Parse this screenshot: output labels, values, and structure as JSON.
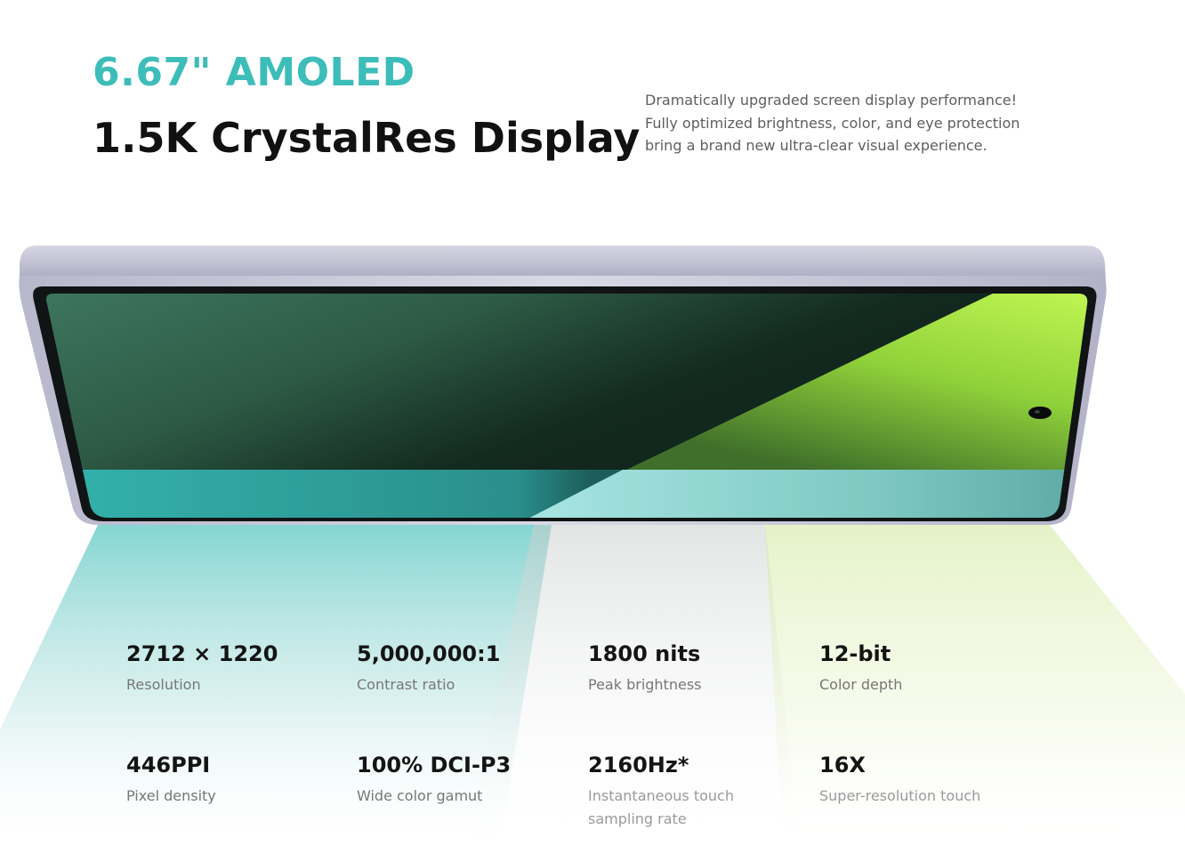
{
  "header": {
    "accent_title": "6.67\" AMOLED",
    "main_title": "1.5K CrystalRes Display",
    "description_lines": [
      "Dramatically upgraded screen display performance!",
      "Fully optimized brightness, color, and eye protection",
      "bring a brand new ultra-clear visual experience."
    ]
  },
  "colors": {
    "accent": "#3dbdb9",
    "heading": "#111111",
    "frame": "#c4c3d6",
    "screen_green": "#3b6f58",
    "screen_lime": "#b8ef4e",
    "screen_teal": "#35b2ad"
  },
  "specs": [
    {
      "value": "2712 × 1220",
      "label": "Resolution",
      "label_line2": ""
    },
    {
      "value": "5,000,000:1",
      "label": "Contrast ratio",
      "label_line2": ""
    },
    {
      "value": "1800 nits",
      "label": "Peak brightness",
      "label_line2": ""
    },
    {
      "value": "12-bit",
      "label": "Color depth",
      "label_line2": ""
    },
    {
      "value": "446PPI",
      "label": "Pixel density",
      "label_line2": ""
    },
    {
      "value": "100% DCI-P3",
      "label": "Wide color gamut",
      "label_line2": ""
    },
    {
      "value": "2160Hz*",
      "label": "Instantaneous touch",
      "label_line2": "sampling rate"
    },
    {
      "value": "16X",
      "label": "Super-resolution touch",
      "label_line2": ""
    }
  ]
}
